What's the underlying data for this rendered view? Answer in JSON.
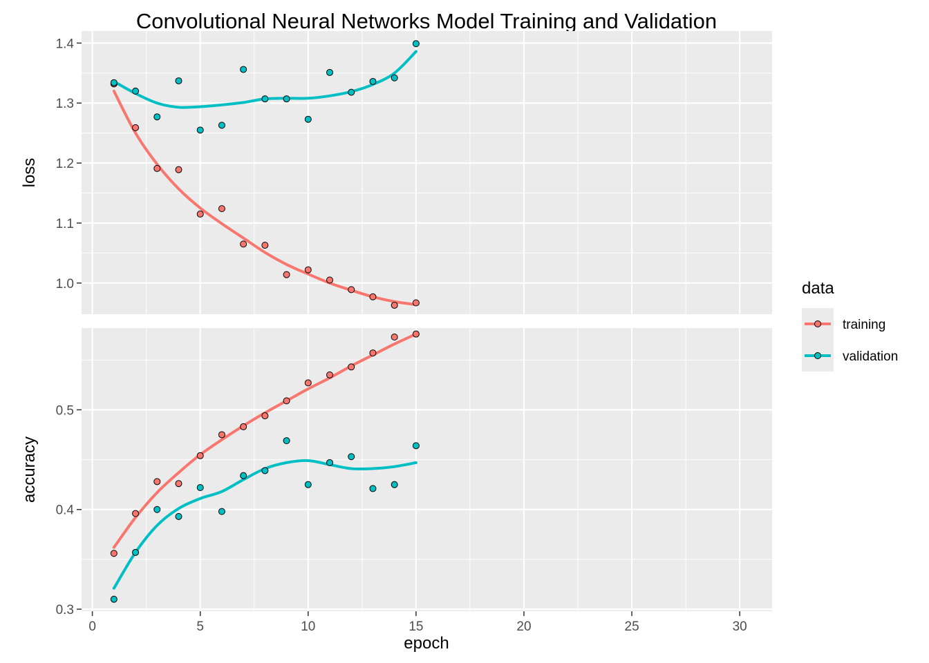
{
  "chart_data": {
    "type": "scatter",
    "title": "Convolutional Neural Networks Model Training and Validation",
    "xlabel": "epoch",
    "xlim": [
      -0.5,
      31.5
    ],
    "xticks": [
      "0",
      "5",
      "10",
      "15",
      "20",
      "25",
      "30"
    ],
    "grid": true,
    "legend": {
      "title": "data",
      "position": "right",
      "entries": [
        {
          "name": "training",
          "color": "#F8766D"
        },
        {
          "name": "validation",
          "color": "#00BFC4"
        }
      ]
    },
    "panels": [
      {
        "id": "loss",
        "ylabel": "loss",
        "ylim": [
          0.948,
          1.42
        ],
        "yticks": [
          "1.0",
          "1.1",
          "1.2",
          "1.3",
          "1.4"
        ],
        "series": [
          {
            "name": "training",
            "color": "#F8766D",
            "x": [
              1,
              2,
              3,
              4,
              5,
              6,
              7,
              8,
              9,
              10,
              11,
              12,
              13,
              14,
              15
            ],
            "values": [
              1.332,
              1.259,
              1.191,
              1.189,
              1.115,
              1.124,
              1.065,
              1.063,
              1.014,
              1.022,
              1.005,
              0.989,
              0.977,
              0.963,
              0.967
            ],
            "smooth": [
              1.32,
              1.25,
              1.198,
              1.157,
              1.125,
              1.099,
              1.075,
              1.051,
              1.031,
              1.015,
              1.0,
              0.988,
              0.977,
              0.969,
              0.964
            ]
          },
          {
            "name": "validation",
            "color": "#00BFC4",
            "x": [
              1,
              2,
              3,
              4,
              5,
              6,
              7,
              8,
              9,
              10,
              11,
              12,
              13,
              14,
              15
            ],
            "values": [
              1.334,
              1.32,
              1.277,
              1.337,
              1.255,
              1.263,
              1.356,
              1.307,
              1.307,
              1.273,
              1.351,
              1.318,
              1.336,
              1.342,
              1.399
            ],
            "smooth": [
              1.336,
              1.316,
              1.3,
              1.293,
              1.294,
              1.297,
              1.301,
              1.307,
              1.308,
              1.308,
              1.312,
              1.319,
              1.331,
              1.35,
              1.386
            ]
          }
        ]
      },
      {
        "id": "accuracy",
        "ylabel": "accuracy",
        "ylim": [
          0.298,
          0.582
        ],
        "yticks": [
          "0.3",
          "0.4",
          "0.5"
        ],
        "series": [
          {
            "name": "training",
            "color": "#F8766D",
            "x": [
              1,
              2,
              3,
              4,
              5,
              6,
              7,
              8,
              9,
              10,
              11,
              12,
              13,
              14,
              15
            ],
            "values": [
              0.356,
              0.396,
              0.428,
              0.426,
              0.454,
              0.475,
              0.483,
              0.494,
              0.509,
              0.527,
              0.535,
              0.543,
              0.557,
              0.573,
              0.576
            ],
            "smooth": [
              0.362,
              0.392,
              0.417,
              0.437,
              0.455,
              0.47,
              0.484,
              0.497,
              0.509,
              0.521,
              0.532,
              0.544,
              0.555,
              0.566,
              0.576
            ]
          },
          {
            "name": "validation",
            "color": "#00BFC4",
            "x": [
              1,
              2,
              3,
              4,
              5,
              6,
              7,
              8,
              9,
              10,
              11,
              12,
              13,
              14,
              15
            ],
            "values": [
              0.31,
              0.357,
              0.4,
              0.393,
              0.422,
              0.398,
              0.434,
              0.439,
              0.469,
              0.425,
              0.447,
              0.453,
              0.421,
              0.425,
              0.464
            ],
            "smooth": [
              0.321,
              0.357,
              0.384,
              0.401,
              0.411,
              0.418,
              0.43,
              0.441,
              0.447,
              0.449,
              0.445,
              0.441,
              0.441,
              0.443,
              0.447
            ]
          }
        ]
      }
    ]
  }
}
